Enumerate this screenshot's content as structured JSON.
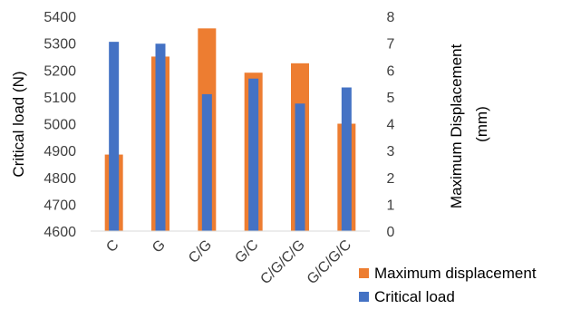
{
  "chart_data": {
    "type": "bar",
    "categories": [
      "C",
      "G",
      "C/G",
      "G/C",
      "C/G/C/G",
      "G/C/G/C"
    ],
    "series": [
      {
        "name": "Maximum displacement",
        "axis": "right",
        "color": "#ED7D31",
        "values": [
          2.85,
          6.5,
          7.55,
          5.9,
          6.25,
          4.0
        ]
      },
      {
        "name": "Critical load",
        "axis": "left",
        "color": "#4472C4",
        "values": [
          5305,
          5298,
          5110,
          5168,
          5075,
          5135
        ]
      }
    ],
    "ylabel": "Critical load (N)",
    "y2label_lines": [
      "Maximum Displacement",
      "(mm)"
    ],
    "ylim": [
      4600,
      5400
    ],
    "y2lim": [
      0,
      8
    ],
    "yticks": [
      "4600",
      "4700",
      "4800",
      "4900",
      "5000",
      "5100",
      "5200",
      "5300",
      "5400"
    ],
    "y2ticks": [
      "0",
      "1",
      "2",
      "3",
      "4",
      "5",
      "6",
      "7",
      "8"
    ],
    "grid": false,
    "legend_position": "bottom-right"
  }
}
